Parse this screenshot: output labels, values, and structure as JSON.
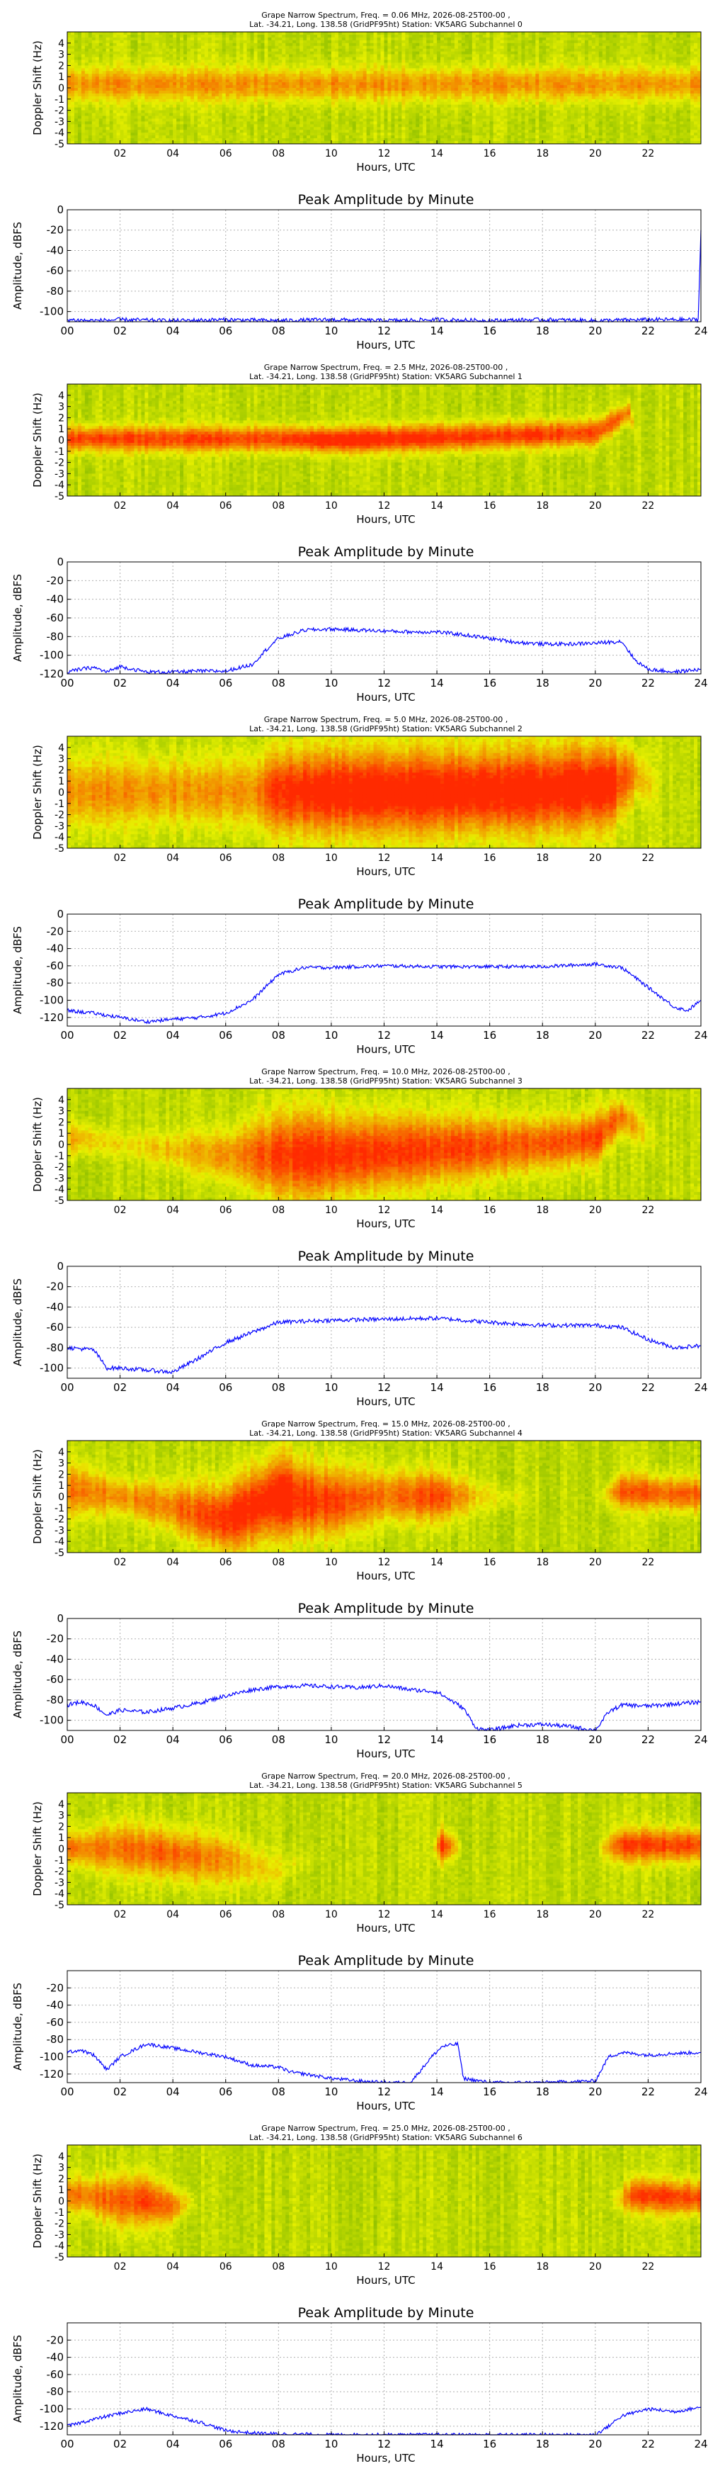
{
  "spectrogram_common": {
    "title_line2": "Lat. -34.21, Long. 138.58 (GridPF95ht) Station: VK5ARG",
    "title_prefix": "Grape Narrow Spectrum, Freq. = ",
    "title_suffix": " MHz, 2026-08-25T00-00 ,",
    "xlabel": "Hours, UTC",
    "ylabel": "Doppler Shift (Hz)",
    "xticks": [
      "02",
      "04",
      "06",
      "08",
      "10",
      "12",
      "14",
      "16",
      "18",
      "20",
      "22"
    ],
    "yticks": [
      "4",
      "3",
      "2",
      "1",
      "0",
      "-1",
      "-2",
      "-3",
      "-4",
      "-5"
    ]
  },
  "amplitude_common": {
    "title": "Peak Amplitude by Minute",
    "xlabel": "Hours, UTC",
    "ylabel": "Amplitude, dBFS",
    "xticks": [
      "00",
      "02",
      "04",
      "06",
      "08",
      "10",
      "12",
      "14",
      "16",
      "18",
      "20",
      "22",
      "24"
    ]
  },
  "colors": {
    "spec_low": "#2e8b00",
    "spec_mid": "#e8f000",
    "spec_high": "#ff2a00",
    "line": "#0000ff",
    "grid": "#b0b0b0"
  },
  "chart_data": [
    {
      "type": "heatmap",
      "freq": "0.06",
      "subchannel": "Subchannel 0",
      "xlim": [
        0,
        24
      ],
      "ylim": [
        -5,
        5
      ],
      "signal": [
        [
          0,
          0.3,
          2,
          0.5
        ],
        [
          24,
          0.3,
          2,
          0.5
        ]
      ]
    },
    {
      "type": "line",
      "ylim": [
        -110,
        0
      ],
      "yticks": [
        0,
        -20,
        -40,
        -60,
        -80,
        -100
      ],
      "x": [
        0,
        1,
        2,
        4,
        6,
        8,
        10,
        12,
        14,
        16,
        18,
        20,
        22,
        23.9,
        24
      ],
      "y": [
        -108,
        -109,
        -108,
        -109,
        -108,
        -109,
        -108,
        -109,
        -108,
        -109,
        -108,
        -109,
        -108,
        -108,
        -20
      ]
    },
    {
      "type": "heatmap",
      "freq": "2.5",
      "subchannel": "Subchannel 1",
      "xlim": [
        0,
        24
      ],
      "ylim": [
        -5,
        5
      ],
      "signal": [
        [
          8,
          0.1,
          1.5,
          0.8
        ],
        [
          10,
          0,
          1.5,
          1
        ],
        [
          14,
          0.2,
          1.6,
          0.9
        ],
        [
          20,
          0.6,
          1.6,
          0.8
        ],
        [
          21.3,
          2.5,
          1.2,
          0.6
        ],
        [
          21.6,
          0,
          1,
          0
        ]
      ]
    },
    {
      "type": "line",
      "ylim": [
        -120,
        0
      ],
      "yticks": [
        0,
        -20,
        -40,
        -60,
        -80,
        -100,
        -120
      ],
      "x": [
        0,
        0.5,
        1,
        1.5,
        2,
        3,
        4,
        5,
        6,
        7,
        7.5,
        8,
        9,
        10,
        11,
        12,
        13,
        14,
        15,
        16,
        17,
        18,
        19,
        20,
        21,
        21.5,
        22,
        23,
        24
      ],
      "y": [
        -118,
        -115,
        -113,
        -118,
        -112,
        -118,
        -118,
        -117,
        -117,
        -110,
        -95,
        -82,
        -73,
        -72,
        -73,
        -74,
        -75,
        -75,
        -78,
        -82,
        -86,
        -88,
        -88,
        -87,
        -85,
        -105,
        -115,
        -118,
        -115
      ]
    },
    {
      "type": "heatmap",
      "freq": "5.0",
      "subchannel": "Subchannel 2",
      "xlim": [
        0,
        24
      ],
      "ylim": [
        -5,
        5
      ],
      "signal": [
        [
          7,
          0,
          4,
          0.5
        ],
        [
          8,
          0,
          5,
          0.9
        ],
        [
          10,
          0,
          5,
          1
        ],
        [
          14,
          0,
          5,
          1
        ],
        [
          18,
          0.2,
          5,
          1
        ],
        [
          20.5,
          0.5,
          5,
          1
        ],
        [
          21.5,
          1.5,
          3,
          0.5
        ],
        [
          22.5,
          0,
          2,
          0
        ]
      ]
    },
    {
      "type": "line",
      "ylim": [
        -130,
        0
      ],
      "yticks": [
        0,
        -20,
        -40,
        -60,
        -80,
        -100,
        -120
      ],
      "x": [
        0,
        1,
        2,
        3,
        4,
        5,
        6,
        7,
        8,
        9,
        10,
        12,
        14,
        16,
        18,
        20,
        21,
        22,
        23,
        23.5,
        24
      ],
      "y": [
        -112,
        -115,
        -120,
        -125,
        -122,
        -120,
        -115,
        -100,
        -70,
        -62,
        -62,
        -60,
        -61,
        -61,
        -61,
        -58,
        -62,
        -85,
        -108,
        -112,
        -100
      ]
    },
    {
      "type": "heatmap",
      "freq": "10.0",
      "subchannel": "Subchannel 3",
      "xlim": [
        0,
        24
      ],
      "ylim": [
        -5,
        5
      ],
      "signal": [
        [
          0.5,
          0.5,
          2,
          0.4
        ],
        [
          2,
          0,
          1.5,
          0.2
        ],
        [
          6,
          -1,
          3,
          0.5
        ],
        [
          8,
          -1,
          5,
          0.8
        ],
        [
          10,
          -1,
          5,
          0.9
        ],
        [
          14,
          -0.5,
          4,
          0.8
        ],
        [
          18,
          0,
          3,
          0.7
        ],
        [
          20,
          0.5,
          3,
          0.8
        ],
        [
          21,
          2.5,
          2,
          0.6
        ],
        [
          22.5,
          0,
          2,
          0
        ]
      ]
    },
    {
      "type": "line",
      "ylim": [
        -110,
        0
      ],
      "yticks": [
        0,
        -20,
        -40,
        -60,
        -80,
        -100
      ],
      "x": [
        0,
        1,
        1.5,
        2,
        3,
        4,
        5,
        6,
        7,
        8,
        9,
        10,
        12,
        14,
        16,
        18,
        20,
        21,
        22,
        23,
        24
      ],
      "y": [
        -80,
        -82,
        -100,
        -100,
        -102,
        -104,
        -90,
        -75,
        -65,
        -55,
        -54,
        -53,
        -52,
        -51,
        -55,
        -58,
        -58,
        -60,
        -72,
        -80,
        -78
      ]
    },
    {
      "type": "heatmap",
      "freq": "15.0",
      "subchannel": "Subchannel 4",
      "xlim": [
        0,
        24
      ],
      "ylim": [
        -5,
        5
      ],
      "signal": [
        [
          0.5,
          0.5,
          3,
          0.6
        ],
        [
          2,
          0,
          2,
          0.5
        ],
        [
          4,
          -1,
          3,
          0.6
        ],
        [
          6,
          -2,
          4,
          0.9
        ],
        [
          8,
          0,
          5,
          1
        ],
        [
          10,
          -0.5,
          4,
          0.8
        ],
        [
          12,
          0,
          3,
          0.6
        ],
        [
          14,
          0,
          3,
          0.8
        ],
        [
          15.5,
          0,
          2,
          0.3
        ],
        [
          18,
          0,
          1,
          0
        ],
        [
          20,
          0,
          1,
          0
        ],
        [
          21,
          0.5,
          2,
          0.7
        ],
        [
          23,
          0.2,
          2,
          0.7
        ]
      ]
    },
    {
      "type": "line",
      "ylim": [
        -110,
        0
      ],
      "yticks": [
        0,
        -20,
        -40,
        -60,
        -80,
        -100
      ],
      "x": [
        0,
        0.5,
        1,
        1.5,
        2,
        3,
        4,
        5,
        6,
        7,
        8,
        9,
        10,
        11,
        12,
        13,
        14,
        15,
        15.5,
        16,
        17,
        18,
        19,
        20,
        20.5,
        21,
        22,
        23,
        24
      ],
      "y": [
        -85,
        -82,
        -85,
        -95,
        -90,
        -92,
        -88,
        -83,
        -76,
        -70,
        -67,
        -66,
        -67,
        -68,
        -66,
        -70,
        -72,
        -88,
        -108,
        -110,
        -105,
        -104,
        -106,
        -110,
        -92,
        -85,
        -86,
        -84,
        -82
      ]
    },
    {
      "type": "heatmap",
      "freq": "20.0",
      "subchannel": "Subchannel 5",
      "xlim": [
        0,
        24
      ],
      "ylim": [
        -5,
        5
      ],
      "signal": [
        [
          0.3,
          0,
          2,
          0.6
        ],
        [
          2,
          0,
          3,
          0.6
        ],
        [
          4,
          -0.5,
          3,
          0.7
        ],
        [
          6,
          -1,
          3,
          0.5
        ],
        [
          8,
          -2,
          2,
          0.2
        ],
        [
          10,
          0,
          1,
          0
        ],
        [
          13.8,
          0,
          1,
          0
        ],
        [
          14.2,
          0.3,
          2,
          0.9
        ],
        [
          15,
          0,
          1,
          0
        ],
        [
          20,
          0,
          1,
          0
        ],
        [
          21,
          0.3,
          2,
          0.8
        ],
        [
          23,
          0.3,
          2,
          0.8
        ]
      ]
    },
    {
      "type": "line",
      "ylim": [
        -130,
        0
      ],
      "yticks": [
        -20,
        -40,
        -60,
        -80,
        -100,
        -120
      ],
      "x": [
        0,
        0.5,
        1,
        1.5,
        2,
        3,
        4,
        5,
        6,
        7,
        8,
        8.5,
        9,
        10,
        11,
        12,
        13,
        13.8,
        14.2,
        14.8,
        15,
        16,
        18,
        20,
        20.5,
        21,
        22,
        23,
        24
      ],
      "y": [
        -95,
        -92,
        -98,
        -115,
        -100,
        -85,
        -90,
        -95,
        -100,
        -110,
        -112,
        -118,
        -120,
        -125,
        -128,
        -130,
        -130,
        -100,
        -88,
        -85,
        -125,
        -130,
        -130,
        -128,
        -100,
        -95,
        -98,
        -96,
        -95
      ]
    },
    {
      "type": "heatmap",
      "freq": "25.0",
      "subchannel": "Subchannel 6",
      "xlim": [
        0,
        24
      ],
      "ylim": [
        -5,
        5
      ],
      "signal": [
        [
          0.5,
          0.5,
          2,
          0.6
        ],
        [
          2,
          0,
          3,
          0.7
        ],
        [
          3,
          0,
          3,
          0.8
        ],
        [
          4,
          -0.5,
          2,
          0.6
        ],
        [
          5,
          0,
          1,
          0
        ],
        [
          20.5,
          0,
          1,
          0
        ],
        [
          21.5,
          0.5,
          2,
          0.8
        ],
        [
          23,
          0.3,
          2,
          0.8
        ]
      ]
    },
    {
      "type": "line",
      "ylim": [
        -130,
        0
      ],
      "yticks": [
        -20,
        -40,
        -60,
        -80,
        -100,
        -120
      ],
      "x": [
        0,
        1,
        2,
        3,
        4,
        5,
        6,
        7,
        8,
        10,
        12,
        14,
        16,
        18,
        20,
        20.5,
        21,
        22,
        23,
        24
      ],
      "y": [
        -120,
        -112,
        -105,
        -100,
        -108,
        -115,
        -125,
        -128,
        -129,
        -130,
        -130,
        -130,
        -130,
        -130,
        -130,
        -120,
        -108,
        -100,
        -103,
        -98
      ]
    }
  ]
}
